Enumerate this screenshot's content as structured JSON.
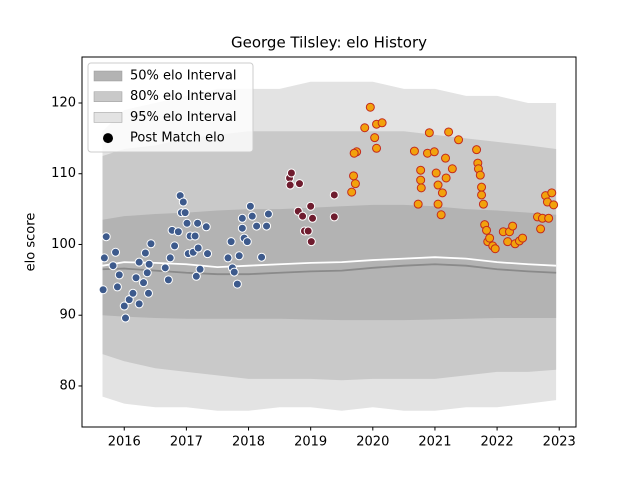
{
  "chart_data": {
    "type": "scatter",
    "title": "George Tilsley: elo History",
    "ylabel": "elo score",
    "xlim": [
      2015.32,
      2023.27
    ],
    "ylim": [
      74.2,
      126.5
    ],
    "xticks": [
      2016,
      2017,
      2018,
      2019,
      2020,
      2021,
      2022,
      2023
    ],
    "yticks": [
      80,
      90,
      100,
      110,
      120
    ],
    "legend": "upper left",
    "x": [
      2015.65,
      2016,
      2016.5,
      2017,
      2017.5,
      2018,
      2018.5,
      2019,
      2019.5,
      2020,
      2020.5,
      2021,
      2021.5,
      2022,
      2022.5,
      2022.95
    ],
    "bands": [
      {
        "name": "95% elo Interval",
        "color": "#e3e3e3",
        "upper": [
          116,
          119,
          120,
          121,
          122,
          122,
          122,
          123,
          123,
          123,
          122,
          122,
          121,
          121,
          120,
          120
        ],
        "lower": [
          78.5,
          77.5,
          77,
          77,
          76.5,
          76.5,
          77,
          77,
          76.5,
          77,
          76.5,
          76.5,
          77,
          77,
          77.5,
          78
        ]
      },
      {
        "name": "80% elo Interval",
        "color": "#c9c9c9",
        "upper": [
          112.5,
          113.5,
          114,
          115,
          115.5,
          116,
          116,
          116,
          116,
          116,
          116,
          115.5,
          115,
          114.5,
          114,
          113.5
        ],
        "lower": [
          84.5,
          83.5,
          82.5,
          82,
          81.5,
          81,
          81,
          81,
          80.8,
          81,
          81,
          81,
          81.5,
          82,
          82,
          82.3
        ]
      },
      {
        "name": "50% elo Interval",
        "color": "#b3b3b3",
        "upper": [
          103.5,
          104,
          104.3,
          104.5,
          104.8,
          105,
          105,
          105.2,
          105.4,
          105.6,
          105.6,
          105.4,
          105,
          104.8,
          104.5,
          104.2
        ],
        "lower": [
          90,
          89.8,
          89.6,
          89.5,
          89.5,
          89.5,
          89.5,
          89.4,
          89.3,
          89.3,
          89.3,
          89.4,
          89.5,
          89.6,
          89.6,
          89.6
        ]
      }
    ],
    "lines": [
      {
        "color": "#8a8a8a",
        "values": [
          96.5,
          96.6,
          96.3,
          96,
          95.8,
          95.8,
          96,
          96.2,
          96.3,
          96.7,
          97,
          97.2,
          97,
          96.5,
          96.2,
          96
        ]
      },
      {
        "color": "#ffffff",
        "values": [
          97,
          97.5,
          97.4,
          97.2,
          96.8,
          97,
          97.2,
          97.4,
          97.5,
          97.8,
          98,
          98.2,
          98,
          97.5,
          97.2,
          97
        ]
      }
    ],
    "points": {
      "name": "Post Match elo",
      "color": "#000000",
      "groups": [
        {
          "color": "#3d5a8c",
          "edge": "#ffffff",
          "x": [
            2015.66,
            2015.71,
            2015.68,
            2015.82,
            2015.86,
            2015.89,
            2015.92,
            2016.0,
            2016.02,
            2016.08,
            2016.14,
            2016.19,
            2016.24,
            2016.24,
            2016.31,
            2016.34,
            2016.37,
            2016.39,
            2016.4,
            2016.43,
            2016.66,
            2016.71,
            2016.74,
            2016.77,
            2016.81,
            2016.87,
            2016.9,
            2016.92,
            2016.95,
            2016.98,
            2017.01,
            2017.03,
            2017.06,
            2017.11,
            2017.14,
            2017.16,
            2017.18,
            2017.19,
            2017.22,
            2017.32,
            2017.34,
            2017.67,
            2017.72,
            2017.74,
            2017.77,
            2017.82,
            2017.85,
            2017.9,
            2017.9,
            2017.93,
            2017.98,
            2018.03,
            2018.06,
            2018.13,
            2018.21,
            2018.29,
            2018.32
          ],
          "y": [
            93.6,
            101.1,
            98.1,
            97.0,
            98.9,
            94.0,
            95.7,
            91.3,
            89.6,
            92.2,
            93.1,
            95.3,
            91.6,
            97.5,
            94.6,
            98.8,
            96.0,
            93.1,
            97.2,
            100.1,
            96.7,
            95.0,
            98.1,
            102.0,
            99.8,
            101.8,
            106.9,
            104.5,
            106.0,
            104.5,
            103.0,
            98.7,
            101.2,
            98.9,
            101.2,
            95.5,
            103.0,
            99.5,
            96.5,
            102.5,
            98.7,
            98.1,
            100.4,
            96.7,
            96.1,
            94.4,
            98.4,
            102.3,
            103.7,
            100.9,
            100.4,
            105.4,
            104.0,
            102.6,
            98.2,
            102.6,
            104.3
          ]
        },
        {
          "color": "#6e1c2e",
          "edge": "#ffffff",
          "x": [
            2018.66,
            2018.69,
            2018.67,
            2018.82,
            2018.8,
            2018.87,
            2018.9,
            2018.96,
            2019.0,
            2019.03,
            2019.01,
            2019.38,
            2019.38
          ],
          "y": [
            109.4,
            110.1,
            108.4,
            108.6,
            104.7,
            104.0,
            101.9,
            101.9,
            105.4,
            103.7,
            100.4,
            107.0,
            103.9
          ]
        },
        {
          "color": "#f2a20c",
          "edge": "#c42a1c",
          "x": [
            2019.66,
            2019.69,
            2019.72,
            2019.74,
            2019.7,
            2019.87,
            2019.96,
            2020.03,
            2020.06,
            2020.06,
            2020.15,
            2020.67,
            2020.73,
            2020.77,
            2020.77,
            2020.78,
            2020.88,
            2020.91,
            2020.99,
            2021.02,
            2021.05,
            2021.05,
            2021.1,
            2021.12,
            2021.17,
            2021.18,
            2021.22,
            2021.28,
            2021.38,
            2021.67,
            2021.69,
            2021.7,
            2021.73,
            2021.75,
            2021.75,
            2021.78,
            2021.8,
            2021.83,
            2021.85,
            2021.88,
            2021.93,
            2021.97,
            2022.1,
            2022.17,
            2022.2,
            2022.25,
            2022.29,
            2022.36,
            2022.41,
            2022.65,
            2022.7,
            2022.73,
            2022.78,
            2022.81,
            2022.83,
            2022.88,
            2022.91
          ],
          "y": [
            107.4,
            109.7,
            108.6,
            113.1,
            112.9,
            116.5,
            119.4,
            115.1,
            117.0,
            113.6,
            117.2,
            113.2,
            105.7,
            110.5,
            109.1,
            108.0,
            112.9,
            115.8,
            113.1,
            110.1,
            108.4,
            105.7,
            104.2,
            107.3,
            112.2,
            109.4,
            115.9,
            110.7,
            114.8,
            113.4,
            111.5,
            110.7,
            109.8,
            108.1,
            107.0,
            105.7,
            102.8,
            102.0,
            100.4,
            100.9,
            99.8,
            99.4,
            101.8,
            100.4,
            101.8,
            102.6,
            100.1,
            100.5,
            100.9,
            103.9,
            102.2,
            103.7,
            106.9,
            106.0,
            103.7,
            107.3,
            105.6
          ]
        }
      ]
    }
  }
}
